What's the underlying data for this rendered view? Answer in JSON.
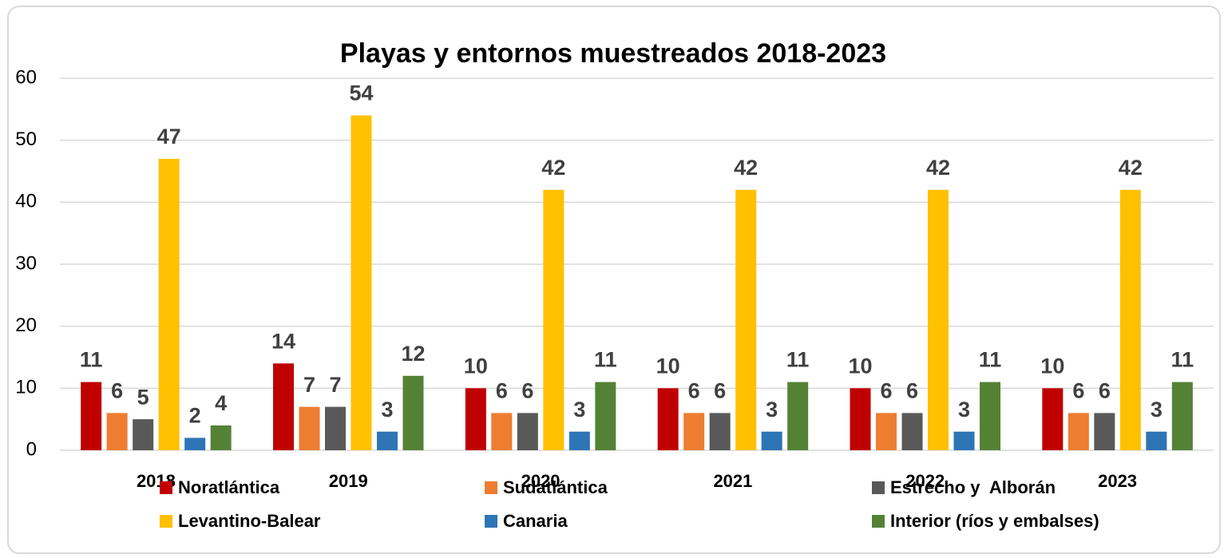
{
  "chart_data": {
    "type": "bar",
    "title": "Playas y entornos muestreados 2018-2023",
    "categories": [
      "2018",
      "2019",
      "2020",
      "2021",
      "2022",
      "2023"
    ],
    "series": [
      {
        "name": "Noratlántica",
        "color": "#c00000",
        "values": [
          11,
          14,
          10,
          10,
          10,
          10
        ]
      },
      {
        "name": "Sudatlántica",
        "color": "#ed7d31",
        "values": [
          6,
          7,
          6,
          6,
          6,
          6
        ]
      },
      {
        "name": "Estrecho y  Alborán",
        "color": "#595959",
        "values": [
          5,
          7,
          6,
          6,
          6,
          6
        ]
      },
      {
        "name": "Levantino-Balear",
        "color": "#ffc000",
        "values": [
          47,
          54,
          42,
          42,
          42,
          42
        ]
      },
      {
        "name": "Canaria",
        "color": "#2e75b6",
        "values": [
          2,
          3,
          3,
          3,
          3,
          3
        ]
      },
      {
        "name": "Interior (ríos y embalses)",
        "color": "#548235",
        "values": [
          4,
          12,
          11,
          11,
          11,
          11
        ]
      }
    ],
    "ylim": [
      0,
      60
    ],
    "yticks": [
      0,
      10,
      20,
      30,
      40,
      50,
      60
    ],
    "grid": true,
    "legend": "bottom"
  }
}
